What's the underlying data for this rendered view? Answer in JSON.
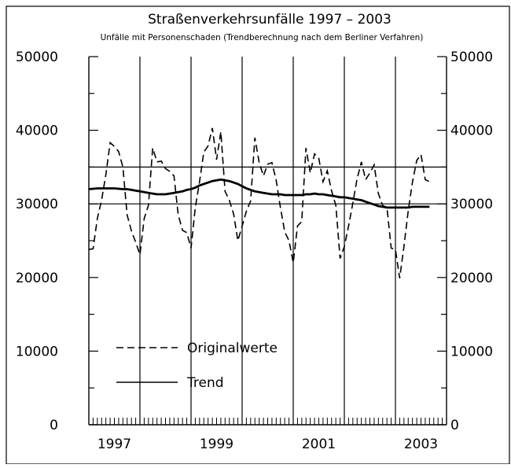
{
  "chart_data": {
    "type": "line",
    "title": "Straßenverkehrsunfälle 1997 – 2003",
    "subtitle": "Unfälle mit Personenschaden (Trendberechnung nach dem Berliner Verfahren)",
    "xlabel": "",
    "ylabel": "",
    "ylim": [
      0,
      50000
    ],
    "xlim": [
      1997,
      2004
    ],
    "y_ticks": [
      0,
      10000,
      20000,
      30000,
      40000,
      50000
    ],
    "y_tick_labels": [
      "0",
      "10000",
      "20000",
      "30000",
      "40000",
      "50000"
    ],
    "x_tick_labels": [
      {
        "label": "1997",
        "pos": 1997.5
      },
      {
        "label": "1999",
        "pos": 1999.5
      },
      {
        "label": "2001",
        "pos": 2001.5
      },
      {
        "label": "2003",
        "pos": 2003.5
      }
    ],
    "year_gridlines": [
      1998,
      1999,
      2000,
      2001,
      2002,
      2003
    ],
    "reference_lines": [
      30000,
      35000
    ],
    "legend_position": "bottom-left",
    "series": [
      {
        "name": "Originalwerte",
        "style": "dashed",
        "x_start": 1997.0,
        "step": 0.083333,
        "values": [
          23800,
          23900,
          28000,
          30500,
          34000,
          38300,
          37800,
          37100,
          35000,
          28500,
          26300,
          24800,
          23100,
          28000,
          29800,
          37600,
          35700,
          35800,
          34800,
          34400,
          33800,
          28500,
          26400,
          26100,
          24000,
          29500,
          33000,
          37000,
          37900,
          40300,
          36000,
          39800,
          31700,
          30500,
          28600,
          25000,
          27000,
          29000,
          30400,
          39000,
          35600,
          33800,
          35400,
          35600,
          33200,
          29500,
          26200,
          25000,
          22000,
          27000,
          27600,
          37600,
          34200,
          36800,
          36200,
          33000,
          34500,
          31800,
          29800,
          22600,
          24200,
          27000,
          30100,
          33400,
          35700,
          33300,
          34200,
          35300,
          31400,
          29800,
          29500,
          24000,
          23800,
          19900,
          24200,
          29000,
          33000,
          35900,
          36700,
          33300,
          33000
        ]
      },
      {
        "name": "Trend",
        "style": "solid",
        "x_start": 1997.0,
        "step": 0.083333,
        "values": [
          32000,
          32050,
          32100,
          32100,
          32100,
          32100,
          32100,
          32050,
          32000,
          32000,
          31900,
          31800,
          31700,
          31600,
          31500,
          31400,
          31300,
          31300,
          31300,
          31400,
          31500,
          31600,
          31700,
          31900,
          32000,
          32200,
          32500,
          32700,
          32900,
          33100,
          33200,
          33300,
          33200,
          33100,
          32900,
          32700,
          32400,
          32100,
          31900,
          31700,
          31600,
          31500,
          31400,
          31300,
          31300,
          31300,
          31200,
          31200,
          31200,
          31200,
          31200,
          31300,
          31300,
          31400,
          31300,
          31300,
          31200,
          31100,
          31000,
          30900,
          30900,
          30800,
          30700,
          30600,
          30500,
          30300,
          30100,
          29900,
          29700,
          29600,
          29500,
          29500,
          29500,
          29500,
          29500,
          29500,
          29600,
          29600,
          29600,
          29600,
          29600
        ]
      }
    ]
  }
}
